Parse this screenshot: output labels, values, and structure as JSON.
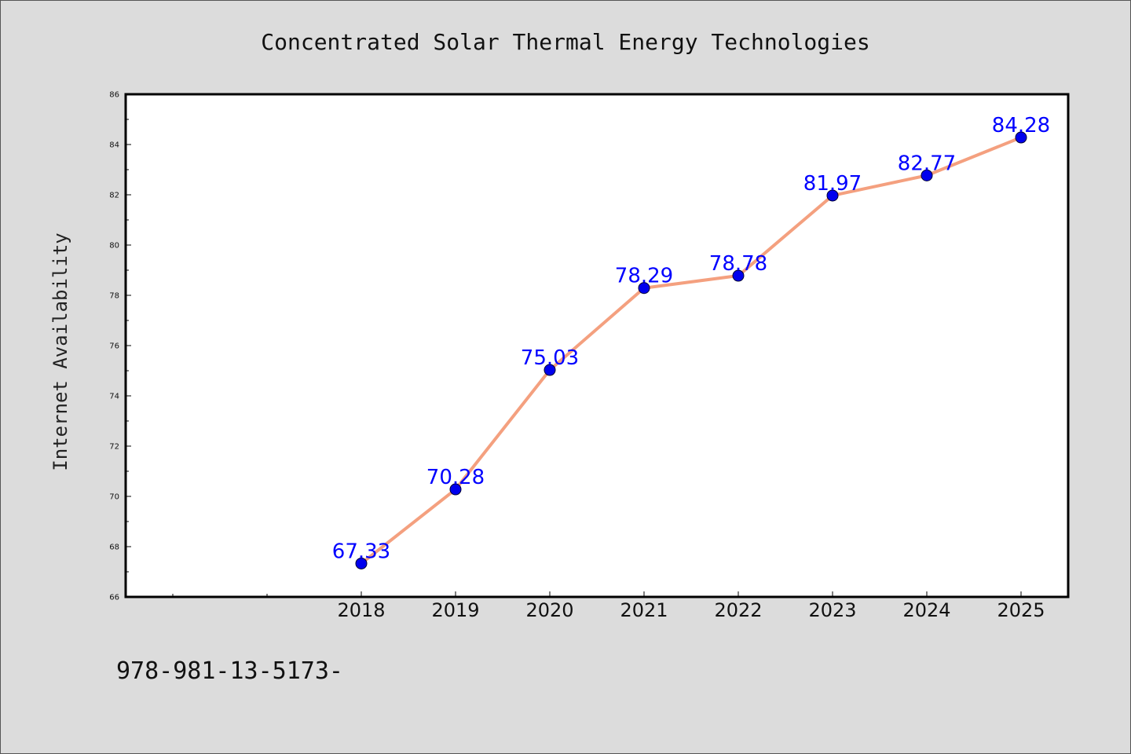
{
  "chart_data": {
    "type": "line",
    "title": "Concentrated Solar Thermal Energy Technologies",
    "xlabel": "",
    "ylabel": "Internet Availability",
    "categories": [
      "2018",
      "2019",
      "2020",
      "2021",
      "2022",
      "2023",
      "2024",
      "2025"
    ],
    "series": [
      {
        "values": [
          67.33,
          70.28,
          75.03,
          78.29,
          78.78,
          81.97,
          82.77,
          84.28
        ],
        "line_color": "#f4a07f",
        "marker_color": "#0000ee",
        "label_color": "#0000ff"
      }
    ],
    "data_labels": [
      "67.33",
      "70.28",
      "75.03",
      "78.29",
      "78.78",
      "81.97",
      "82.77",
      "84.28"
    ],
    "ylim": [
      66,
      86
    ],
    "yticks": [
      66,
      68,
      70,
      72,
      74,
      76,
      78,
      80,
      82,
      84,
      86
    ],
    "ytick_labels": [
      "66",
      "68",
      "70",
      "72",
      "74",
      "76",
      "78",
      "80",
      "82",
      "84",
      "86"
    ],
    "grid": false,
    "legend": "none"
  },
  "footnote": "978-981-13-5173-"
}
